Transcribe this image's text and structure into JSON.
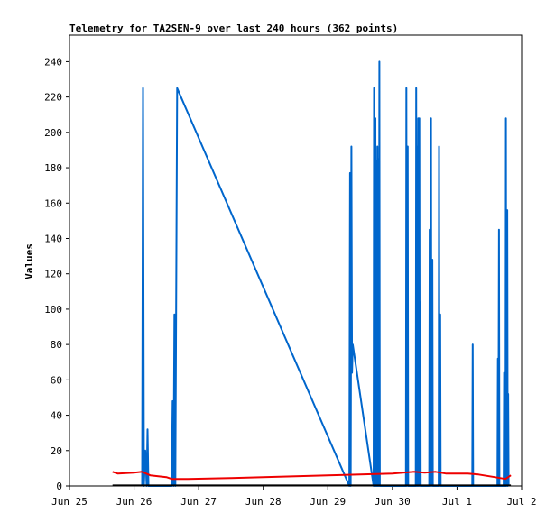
{
  "chart_data": {
    "type": "line",
    "title": "Telemetry for TA2SEN-9 over last 240 hours (362 points)",
    "xlabel": "",
    "ylabel": "Values",
    "ylim": [
      0,
      255
    ],
    "yticks": [
      0,
      20,
      40,
      60,
      80,
      100,
      120,
      140,
      160,
      180,
      200,
      220,
      240
    ],
    "xlim": [
      "2024-06-25",
      "2024-07-02"
    ],
    "xticks": [
      {
        "date": "2024-06-25",
        "label": "Jun 25"
      },
      {
        "date": "2024-06-26",
        "label": "Jun 26"
      },
      {
        "date": "2024-06-27",
        "label": "Jun 27"
      },
      {
        "date": "2024-06-28",
        "label": "Jun 28"
      },
      {
        "date": "2024-06-29",
        "label": "Jun 29"
      },
      {
        "date": "2024-06-30",
        "label": "Jun 30"
      },
      {
        "date": "2024-07-01",
        "label": "Jul 1"
      },
      {
        "date": "2024-07-02",
        "label": "Jul 2"
      }
    ],
    "grid": false,
    "legend": "none",
    "series": [
      {
        "color": "#0066cc",
        "points": [
          [
            "2024-06-26 03:00",
            0
          ],
          [
            "2024-06-26 03:20",
            225
          ],
          [
            "2024-06-26 03:40",
            0
          ],
          [
            "2024-06-26 04:10",
            20
          ],
          [
            "2024-06-26 04:40",
            0
          ],
          [
            "2024-06-26 05:00",
            32
          ],
          [
            "2024-06-26 05:20",
            0
          ],
          [
            "2024-06-26 14:00",
            0
          ],
          [
            "2024-06-26 14:20",
            48
          ],
          [
            "2024-06-26 14:40",
            0
          ],
          [
            "2024-06-26 15:00",
            97
          ],
          [
            "2024-06-26 15:20",
            0
          ],
          [
            "2024-06-26 16:00",
            225
          ],
          [
            "2024-06-29 08:00",
            0
          ],
          [
            "2024-06-29 08:15",
            177
          ],
          [
            "2024-06-29 08:30",
            0
          ],
          [
            "2024-06-29 08:45",
            192
          ],
          [
            "2024-06-29 09:00",
            64
          ],
          [
            "2024-06-29 09:15",
            80
          ],
          [
            "2024-06-29 17:00",
            0
          ],
          [
            "2024-06-29 17:10",
            225
          ],
          [
            "2024-06-29 17:20",
            0
          ],
          [
            "2024-06-29 17:40",
            208
          ],
          [
            "2024-06-29 17:50",
            0
          ],
          [
            "2024-06-29 18:00",
            184
          ],
          [
            "2024-06-29 18:10",
            0
          ],
          [
            "2024-06-29 18:25",
            192
          ],
          [
            "2024-06-29 18:35",
            0
          ],
          [
            "2024-06-29 18:50",
            185
          ],
          [
            "2024-06-29 19:00",
            0
          ],
          [
            "2024-06-29 19:10",
            240
          ],
          [
            "2024-06-29 19:20",
            0
          ],
          [
            "2024-06-30 05:00",
            0
          ],
          [
            "2024-06-30 05:10",
            225
          ],
          [
            "2024-06-30 05:20",
            0
          ],
          [
            "2024-06-30 05:40",
            192
          ],
          [
            "2024-06-30 05:50",
            0
          ],
          [
            "2024-06-30 08:40",
            0
          ],
          [
            "2024-06-30 08:50",
            225
          ],
          [
            "2024-06-30 09:00",
            0
          ],
          [
            "2024-06-30 09:10",
            192
          ],
          [
            "2024-06-30 09:20",
            0
          ],
          [
            "2024-06-30 09:35",
            208
          ],
          [
            "2024-06-30 09:45",
            0
          ],
          [
            "2024-06-30 10:00",
            208
          ],
          [
            "2024-06-30 10:10",
            0
          ],
          [
            "2024-06-30 10:20",
            104
          ],
          [
            "2024-06-30 10:30",
            0
          ],
          [
            "2024-06-30 13:40",
            0
          ],
          [
            "2024-06-30 13:50",
            145
          ],
          [
            "2024-06-30 14:00",
            0
          ],
          [
            "2024-06-30 14:20",
            208
          ],
          [
            "2024-06-30 14:30",
            0
          ],
          [
            "2024-06-30 14:50",
            128
          ],
          [
            "2024-06-30 15:00",
            0
          ],
          [
            "2024-06-30 17:10",
            0
          ],
          [
            "2024-06-30 17:20",
            192
          ],
          [
            "2024-06-30 17:30",
            0
          ],
          [
            "2024-06-30 17:45",
            97
          ],
          [
            "2024-06-30 17:55",
            0
          ],
          [
            "2024-07-01 05:40",
            0
          ],
          [
            "2024-07-01 05:50",
            80
          ],
          [
            "2024-07-01 06:00",
            0
          ],
          [
            "2024-07-01 15:00",
            0
          ],
          [
            "2024-07-01 15:10",
            72
          ],
          [
            "2024-07-01 15:20",
            0
          ],
          [
            "2024-07-01 15:35",
            145
          ],
          [
            "2024-07-01 15:45",
            0
          ],
          [
            "2024-07-01 17:20",
            0
          ],
          [
            "2024-07-01 17:30",
            64
          ],
          [
            "2024-07-01 17:40",
            0
          ],
          [
            "2024-07-01 17:50",
            33
          ],
          [
            "2024-07-01 18:00",
            0
          ],
          [
            "2024-07-01 18:10",
            208
          ],
          [
            "2024-07-01 18:20",
            0
          ],
          [
            "2024-07-01 18:40",
            156
          ],
          [
            "2024-07-01 18:50",
            0
          ],
          [
            "2024-07-01 19:00",
            52
          ],
          [
            "2024-07-01 19:10",
            0
          ]
        ]
      },
      {
        "color": "#ee0000",
        "points": [
          [
            "2024-06-25 16:00",
            8
          ],
          [
            "2024-06-25 18:00",
            7
          ],
          [
            "2024-06-26 00:00",
            7.5
          ],
          [
            "2024-06-26 03:00",
            8
          ],
          [
            "2024-06-26 06:00",
            6
          ],
          [
            "2024-06-26 12:00",
            5
          ],
          [
            "2024-06-26 14:00",
            4
          ],
          [
            "2024-06-26 20:00",
            4
          ],
          [
            "2024-06-27 12:00",
            4.5
          ],
          [
            "2024-06-28 00:00",
            5
          ],
          [
            "2024-06-28 12:00",
            5.5
          ],
          [
            "2024-06-29 00:00",
            6
          ],
          [
            "2024-06-29 12:00",
            6.5
          ],
          [
            "2024-06-30 00:00",
            7
          ],
          [
            "2024-06-30 08:00",
            8
          ],
          [
            "2024-06-30 12:00",
            7.5
          ],
          [
            "2024-06-30 16:00",
            8
          ],
          [
            "2024-06-30 20:00",
            7
          ],
          [
            "2024-07-01 04:00",
            7
          ],
          [
            "2024-07-01 08:00",
            6.5
          ],
          [
            "2024-07-01 14:00",
            5
          ],
          [
            "2024-07-01 18:00",
            4
          ],
          [
            "2024-07-01 20:00",
            6
          ]
        ]
      },
      {
        "color": "#000000",
        "points": [
          [
            "2024-06-25 16:00",
            0.3
          ],
          [
            "2024-07-01 20:00",
            0.3
          ]
        ]
      }
    ]
  }
}
